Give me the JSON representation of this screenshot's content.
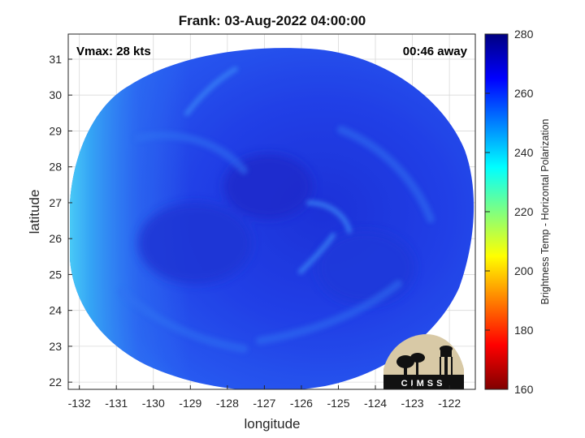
{
  "title": "Frank: 03-Aug-2022 04:00:00",
  "annotations": {
    "vmax": "Vmax: 28 kts",
    "away": "00:46 away"
  },
  "axes": {
    "xlabel": "longitude",
    "ylabel": "latitude",
    "x_ticks": [
      "-132",
      "-131",
      "-130",
      "-129",
      "-128",
      "-127",
      "-126",
      "-125",
      "-124",
      "-123",
      "-122"
    ],
    "y_ticks": [
      "31",
      "30",
      "29",
      "28",
      "27",
      "26",
      "25",
      "24",
      "23",
      "22"
    ],
    "xlim": [
      -132.3,
      -121.3
    ],
    "ylim": [
      21.8,
      31.7
    ],
    "grid": true
  },
  "colorbar": {
    "label": "Brightness Temp - Horizontal Polarization",
    "ticks": [
      "280",
      "260",
      "240",
      "220",
      "200",
      "180",
      "160"
    ],
    "range": [
      160,
      280
    ],
    "colormap": "jet"
  },
  "swath": {
    "center_lon": -126.8,
    "center_lat": 26.6,
    "background_temp_k": 262,
    "storm_center_lon": -126.2,
    "storm_center_lat": 26.8
  },
  "logo": {
    "text": "CIMSS"
  }
}
